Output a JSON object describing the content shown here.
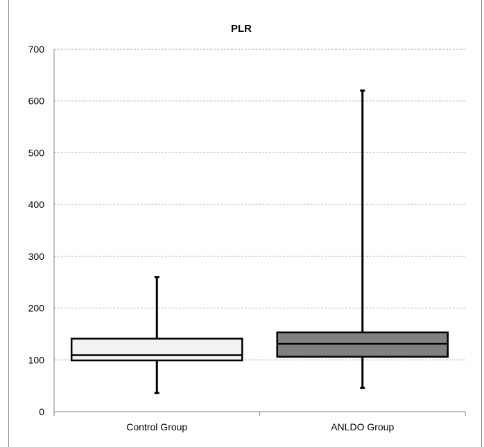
{
  "chart_data": {
    "type": "box",
    "title": "PLR",
    "xlabel": "",
    "ylabel": "",
    "ylim": [
      0,
      700
    ],
    "yticks": [
      0,
      100,
      200,
      300,
      400,
      500,
      600,
      700
    ],
    "grid": true,
    "categories": [
      "Control Group",
      "ANLDO Group"
    ],
    "boxes": [
      {
        "category": "Control Group",
        "min": 36,
        "q1": 99,
        "median": 109,
        "q3": 141,
        "max": 260,
        "color": "#f2f2f2"
      },
      {
        "category": "ANLDO Group",
        "min": 46,
        "q1": 106,
        "median": 131,
        "q3": 153,
        "max": 620,
        "color": "#808080"
      }
    ]
  }
}
